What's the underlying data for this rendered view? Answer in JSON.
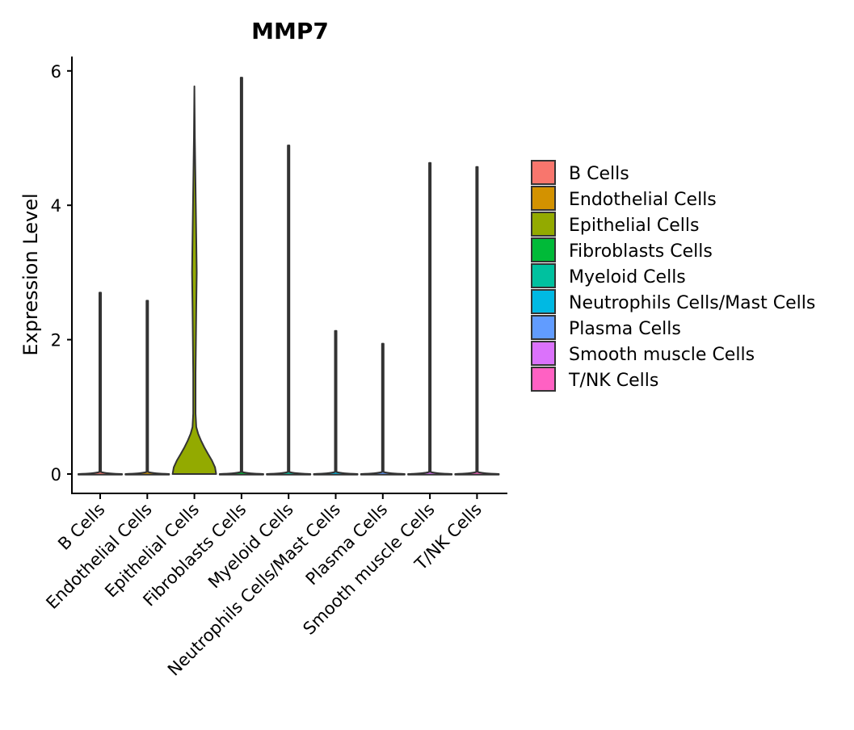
{
  "chart_data": {
    "type": "violin",
    "title": "MMP7",
    "xlabel": "",
    "ylabel": "Expression Level",
    "ylim": [
      -0.3,
      6.2
    ],
    "yticks": [
      0,
      2,
      4,
      6
    ],
    "grid": false,
    "legend_placement": "right",
    "categories": [
      "B Cells",
      "Endothelial Cells",
      "Epithelial Cells",
      "Fibroblasts Cells",
      "Myeloid Cells",
      "Neutrophils Cells/Mast Cells",
      "Plasma Cells",
      "Smooth muscle Cells",
      "T/NK Cells"
    ],
    "colors": [
      "#F8766D",
      "#D39200",
      "#93AA00",
      "#00BA38",
      "#00C19F",
      "#00B9E3",
      "#619CFF",
      "#DB72FB",
      "#FF61C3"
    ],
    "max_values": [
      2.7,
      2.58,
      5.77,
      5.9,
      4.89,
      2.13,
      1.94,
      4.63,
      4.57
    ],
    "epithelial_density_profile": [
      [
        0,
        0.93
      ],
      [
        0.1,
        0.88
      ],
      [
        0.2,
        0.75
      ],
      [
        0.3,
        0.58
      ],
      [
        0.4,
        0.42
      ],
      [
        0.5,
        0.28
      ],
      [
        0.6,
        0.16
      ],
      [
        0.7,
        0.08
      ],
      [
        0.9,
        0.05
      ],
      [
        1.5,
        0.05
      ],
      [
        2.5,
        0.08
      ],
      [
        3.0,
        0.1
      ],
      [
        3.5,
        0.08
      ],
      [
        4.5,
        0.04
      ],
      [
        5.0,
        0.02
      ],
      [
        5.77,
        0.0
      ]
    ],
    "legend": [
      "B Cells",
      "Endothelial Cells",
      "Epithelial Cells",
      "Fibroblasts Cells",
      "Myeloid Cells",
      "Neutrophils Cells/Mast Cells",
      "Plasma Cells",
      "Smooth muscle Cells",
      "T/NK Cells"
    ]
  }
}
